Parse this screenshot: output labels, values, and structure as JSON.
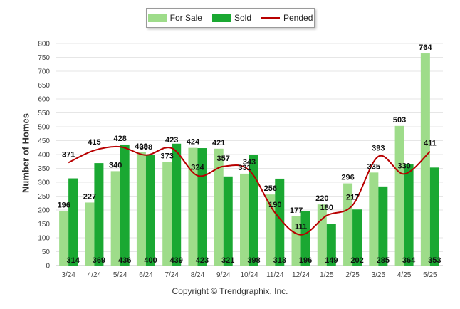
{
  "chart_data": {
    "type": "bar",
    "categories": [
      "3/24",
      "4/24",
      "5/24",
      "6/24",
      "7/24",
      "8/24",
      "9/24",
      "10/24",
      "11/24",
      "12/24",
      "1/25",
      "2/25",
      "3/25",
      "4/25",
      "5/25"
    ],
    "series": [
      {
        "name": "For Sale",
        "type": "bar",
        "color": "#9edc8a",
        "values": [
          196,
          227,
          340,
          408,
          373,
          424,
          421,
          331,
          256,
          177,
          220,
          296,
          335,
          503,
          764
        ]
      },
      {
        "name": "Sold",
        "type": "bar",
        "color": "#1aa832",
        "values": [
          314,
          369,
          436,
          400,
          439,
          423,
          321,
          398,
          313,
          196,
          149,
          202,
          285,
          364,
          353
        ]
      },
      {
        "name": "Pended",
        "type": "line",
        "color": "#b80000",
        "values": [
          371,
          415,
          428,
          398,
          423,
          324,
          357,
          343,
          190,
          111,
          180,
          217,
          393,
          330,
          411
        ]
      }
    ],
    "ylabel": "Number of Homes",
    "xlabel": "",
    "ylim": [
      0,
      800
    ],
    "yticks": [
      0,
      50,
      100,
      150,
      200,
      250,
      300,
      350,
      400,
      450,
      500,
      550,
      600,
      650,
      700,
      750,
      800
    ],
    "grid": true,
    "legend": "top-center"
  },
  "legend": {
    "for_sale": "For Sale",
    "sold": "Sold",
    "pended": "Pended"
  },
  "footer": {
    "copyright": "Copyright © Trendgraphix, Inc."
  }
}
